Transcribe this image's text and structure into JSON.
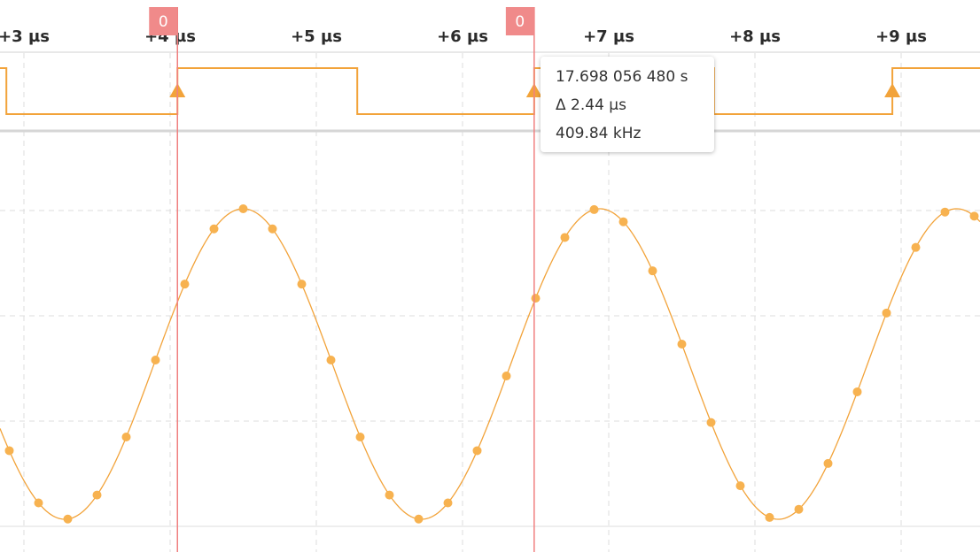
{
  "colors": {
    "signal": "#f2a33a",
    "sample_dot": "#f7b250",
    "cursor_line": "#f08080",
    "cursor_flag": "#f08a8a",
    "grid": "#dcdcdc",
    "separator": "#d0d0d0",
    "text": "#2b2b2b"
  },
  "time_axis": {
    "ticks": [
      {
        "label": "+3 µs",
        "value": 3
      },
      {
        "label": "+4 µs",
        "value": 4
      },
      {
        "label": "+5 µs",
        "value": 5
      },
      {
        "label": "+6 µs",
        "value": 6
      },
      {
        "label": "+7 µs",
        "value": 7
      },
      {
        "label": "+8 µs",
        "value": 8
      },
      {
        "label": "+9 µs",
        "value": 9
      }
    ],
    "range_us": [
      2.86,
      9.52
    ]
  },
  "cursors": [
    {
      "label": "0",
      "time_us": 4.05
    },
    {
      "label": "0",
      "time_us": 6.49
    }
  ],
  "digital_trace": {
    "edges_us": [
      2.88,
      4.05,
      5.28,
      6.49,
      7.72,
      8.94
    ],
    "initial_level": 1,
    "rising_edge_markers_us": [
      4.05,
      6.49,
      8.94
    ]
  },
  "analog_trace": {
    "frequency_khz": 409.84,
    "peak_time_us": 4.5,
    "sample_interval_us": 0.2
  },
  "tooltip": {
    "timestamp": "17.698 056 480 s",
    "delta": "Δ 2.44 µs",
    "frequency": "409.84 kHz"
  }
}
